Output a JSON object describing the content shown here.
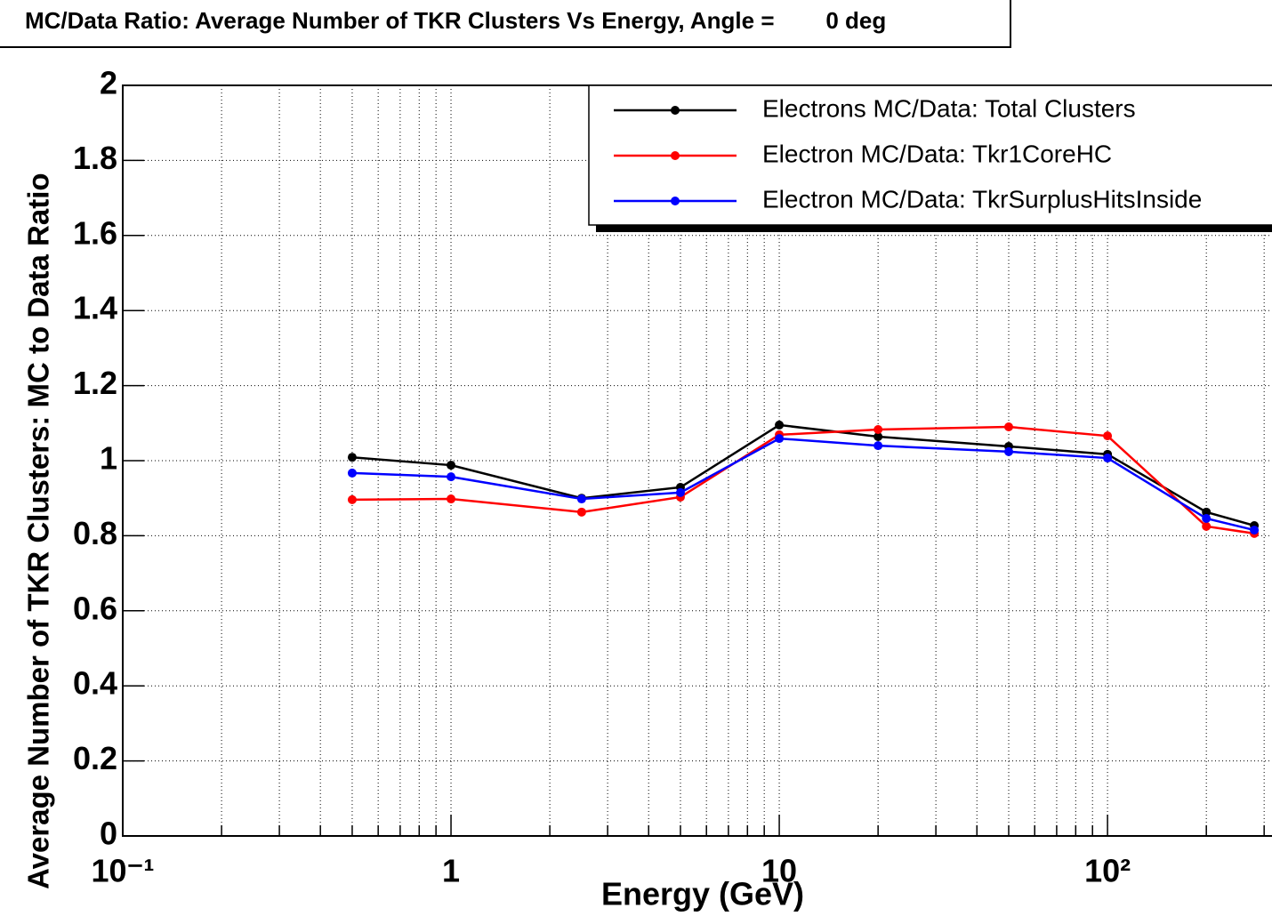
{
  "chart_data": {
    "type": "line",
    "title": "MC/Data Ratio: Average Number of TKR Clusters Vs Energy, Angle =        0 deg",
    "xlabel": "Energy (GeV)",
    "ylabel": "Average Number of TKR Clusters: MC to Data Ratio",
    "x": [
      0.5,
      1,
      2.5,
      5,
      10,
      20,
      50,
      100,
      200,
      280
    ],
    "series": [
      {
        "name": "Electrons MC/Data: Total Clusters",
        "color": "#000000",
        "values": [
          1.009,
          0.988,
          0.9,
          0.929,
          1.095,
          1.064,
          1.038,
          1.017,
          0.863,
          0.827
        ]
      },
      {
        "name": "Electron MC/Data: Tkr1CoreHC",
        "color": "#ff0000",
        "values": [
          0.896,
          0.898,
          0.863,
          0.903,
          1.069,
          1.083,
          1.09,
          1.066,
          0.825,
          0.806
        ]
      },
      {
        "name": "Electron MC/Data: TkrSurplusHitsInside",
        "color": "#0000ff",
        "values": [
          0.967,
          0.957,
          0.898,
          0.915,
          1.059,
          1.04,
          1.024,
          1.007,
          0.846,
          0.815
        ]
      }
    ],
    "xlog": true,
    "xlim": [
      0.1,
      317
    ],
    "ylim": [
      0,
      2
    ],
    "xticks": [
      {
        "value": 0.1,
        "label": "10⁻¹"
      },
      1,
      10,
      {
        "value": 100,
        "label": "10²"
      }
    ],
    "xminorticks": [
      0.2,
      0.3,
      0.4,
      0.5,
      0.6,
      0.7,
      0.8,
      0.9,
      2,
      3,
      4,
      5,
      6,
      7,
      8,
      9,
      20,
      30,
      40,
      50,
      60,
      70,
      80,
      90,
      200,
      300
    ],
    "yticks": [
      0,
      0.2,
      0.4,
      0.6,
      0.8,
      1,
      1.2,
      1.4,
      1.6,
      1.8,
      2
    ],
    "grid": true,
    "legend": "top-right"
  }
}
